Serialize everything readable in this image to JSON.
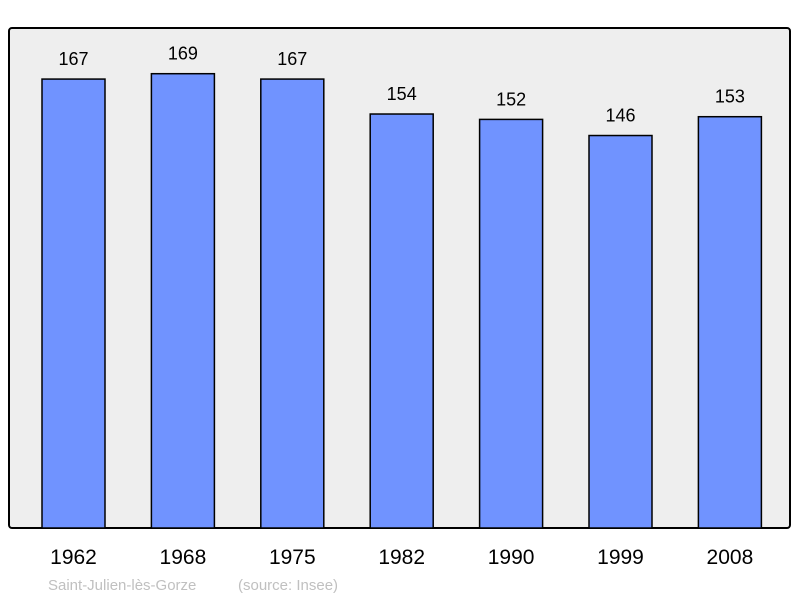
{
  "chart_data": {
    "type": "bar",
    "categories": [
      "1962",
      "1968",
      "1975",
      "1982",
      "1990",
      "1999",
      "2008"
    ],
    "values": [
      167,
      169,
      167,
      154,
      152,
      146,
      153
    ],
    "title": "",
    "xlabel": "",
    "ylabel": "",
    "ylim": [
      0,
      186
    ],
    "grid": false,
    "data_labels": true,
    "colors": {
      "bar": "#7093ff",
      "plot_background": "#eeeeee",
      "frame": "#000000",
      "footer_text": "#c0c0c0"
    }
  },
  "footer": {
    "place": "Saint-Julien-lès-Gorze",
    "source": "(source: Insee)"
  }
}
